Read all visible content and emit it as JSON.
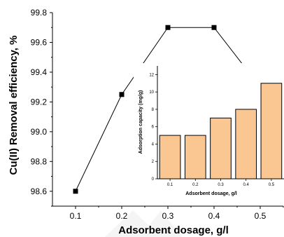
{
  "chart_data": [
    {
      "type": "line",
      "xlabel": "Adsorbent dosage, g/l",
      "ylabel": "Cu(II) Removal efficiency, %",
      "x": [
        0.1,
        0.2,
        0.3,
        0.4,
        0.5
      ],
      "values": [
        98.6,
        99.25,
        99.7,
        99.7,
        99.3
      ],
      "xlim": [
        0.05,
        0.55
      ],
      "ylim": [
        98.5,
        99.8
      ],
      "xticks": [
        "0.1",
        "0.2",
        "0.3",
        "0.4",
        "0.5"
      ],
      "yticks": [
        "98.6",
        "98.8",
        "99.0",
        "99.2",
        "99.4",
        "99.6",
        "99.8"
      ],
      "marker": "square",
      "color": "#000000"
    },
    {
      "type": "bar",
      "xlabel": "Adsorbent dosage, g/l",
      "ylabel": "Adsorption capacity (mg/g)",
      "categories": [
        "0.1",
        "0.2",
        "0.3",
        "0.4",
        "0.5"
      ],
      "values": [
        5,
        5,
        7,
        8,
        11
      ],
      "ylim": [
        0,
        13
      ],
      "yticks": [
        "0",
        "2",
        "4",
        "6",
        "8",
        "10",
        "12"
      ],
      "bar_color": "#FAC792"
    }
  ]
}
